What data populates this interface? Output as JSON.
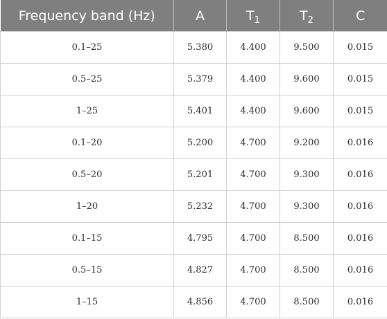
{
  "table": {
    "headers": [
      {
        "main": "Frequency band (Hz)",
        "sub": ""
      },
      {
        "main": "A",
        "sub": ""
      },
      {
        "main": "T",
        "sub": "1"
      },
      {
        "main": "T",
        "sub": "2"
      },
      {
        "main": "C",
        "sub": ""
      }
    ],
    "rows": [
      [
        "0.1–25",
        "5.380",
        "4.400",
        "9.500",
        "0.015"
      ],
      [
        "0.5–25",
        "5.379",
        "4.400",
        "9.600",
        "0.015"
      ],
      [
        "1–25",
        "5.401",
        "4.400",
        "9.600",
        "0.015"
      ],
      [
        "0.1–20",
        "5.200",
        "4.700",
        "9.200",
        "0.016"
      ],
      [
        "0.5–20",
        "5.201",
        "4.700",
        "9.300",
        "0.016"
      ],
      [
        "1–20",
        "5.232",
        "4.700",
        "9.300",
        "0.016"
      ],
      [
        "0.1–15",
        "4.795",
        "4.700",
        "8.500",
        "0.016"
      ],
      [
        "0.5–15",
        "4.827",
        "4.700",
        "8.500",
        "0.016"
      ],
      [
        "1–15",
        "4.856",
        "4.700",
        "8.500",
        "0.016"
      ]
    ]
  }
}
